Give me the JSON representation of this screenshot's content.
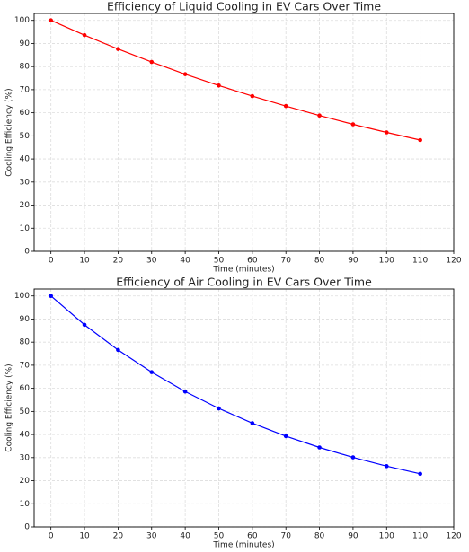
{
  "chart_data": [
    {
      "type": "line",
      "title": "Efficiency of Liquid Cooling in EV Cars Over Time",
      "x_label": "Time (minutes)",
      "y_label": "Cooling Efficiency (%)",
      "x": [
        0,
        10,
        20,
        30,
        40,
        50,
        60,
        70,
        80,
        90,
        100,
        110
      ],
      "values": [
        100,
        93.6,
        87.6,
        82.0,
        76.7,
        71.8,
        67.2,
        62.9,
        58.8,
        55.0,
        51.5,
        48.2
      ],
      "color": "#ff0000",
      "xlim": [
        -5,
        120
      ],
      "xticks": [
        0,
        10,
        20,
        30,
        40,
        50,
        60,
        70,
        80,
        90,
        100,
        110,
        120
      ],
      "ylim": [
        0,
        103
      ],
      "yticks": [
        0,
        10,
        20,
        30,
        40,
        50,
        60,
        70,
        80,
        90,
        100
      ],
      "grid": true
    },
    {
      "type": "line",
      "title": "Efficiency of Air Cooling in EV Cars Over Time",
      "x_label": "Time (minutes)",
      "y_label": "Cooling Efficiency (%)",
      "x": [
        0,
        10,
        20,
        30,
        40,
        50,
        60,
        70,
        80,
        90,
        100,
        110
      ],
      "values": [
        100,
        87.5,
        76.6,
        67.0,
        58.6,
        51.3,
        44.9,
        39.3,
        34.4,
        30.1,
        26.3,
        23.0
      ],
      "color": "#0000ff",
      "xlim": [
        -5,
        120
      ],
      "xticks": [
        0,
        10,
        20,
        30,
        40,
        50,
        60,
        70,
        80,
        90,
        100,
        110,
        120
      ],
      "ylim": [
        0,
        103
      ],
      "yticks": [
        0,
        10,
        20,
        30,
        40,
        50,
        60,
        70,
        80,
        90,
        100
      ],
      "grid": true
    }
  ]
}
